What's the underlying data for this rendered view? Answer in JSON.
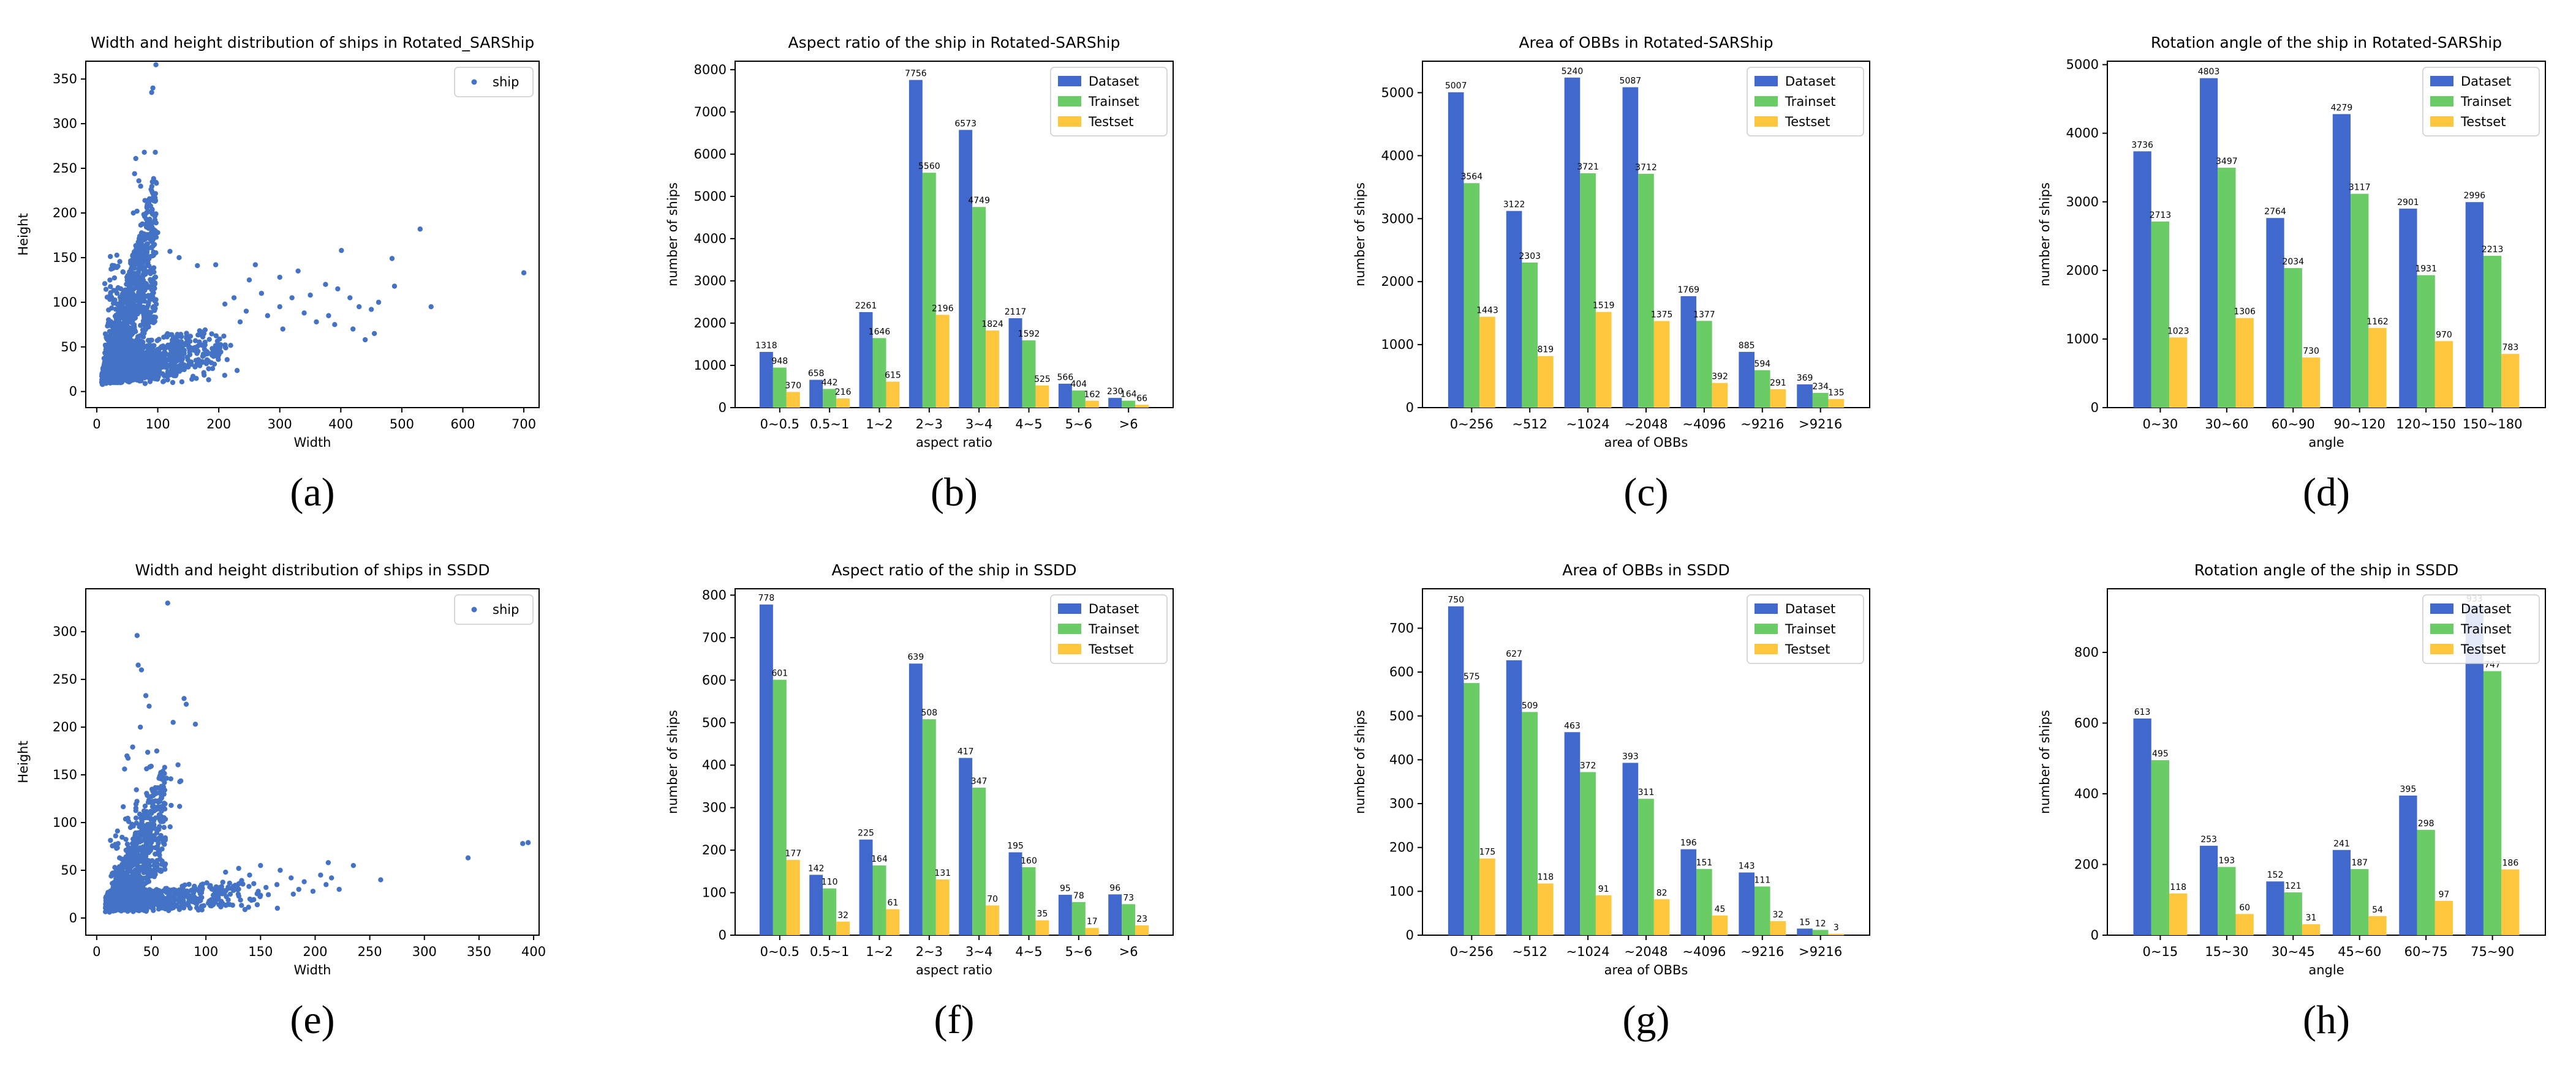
{
  "colors": {
    "dataset": "#4169cd",
    "trainset": "#6acc64",
    "testset": "#ffc73d",
    "scatter": "#4472c4"
  },
  "chart_data": [
    {
      "type": "scatter",
      "panel_label": "(a)",
      "title": "Width and height distribution of ships in Rotated_SARShip",
      "xlabel": "Width",
      "ylabel": "Height",
      "xlim": [
        -18,
        725
      ],
      "ylim": [
        -18,
        370
      ],
      "xticks": [
        0,
        100,
        200,
        300,
        400,
        500,
        600,
        700
      ],
      "yticks": [
        0,
        50,
        100,
        150,
        200,
        250,
        300,
        350
      ],
      "legend": [
        "ship"
      ],
      "legend_position": "top-right",
      "outliers": [
        [
          97,
          366
        ],
        [
          92,
          340
        ],
        [
          90,
          335
        ],
        [
          78,
          268
        ],
        [
          96,
          268
        ],
        [
          64,
          261
        ],
        [
          62,
          244
        ],
        [
          69,
          236
        ],
        [
          72,
          230
        ],
        [
          60,
          200
        ],
        [
          79,
          214
        ],
        [
          66,
          202
        ],
        [
          100,
          178
        ],
        [
          84,
          188
        ],
        [
          120,
          157
        ],
        [
          135,
          150
        ],
        [
          165,
          141
        ],
        [
          195,
          142
        ],
        [
          260,
          142
        ],
        [
          300,
          128
        ],
        [
          330,
          135
        ],
        [
          401,
          158
        ],
        [
          484,
          149
        ],
        [
          530,
          182
        ],
        [
          548,
          95
        ],
        [
          700,
          133
        ],
        [
          488,
          118
        ],
        [
          430,
          95
        ],
        [
          450,
          92
        ],
        [
          462,
          100
        ],
        [
          415,
          105
        ],
        [
          395,
          115
        ],
        [
          375,
          120
        ],
        [
          350,
          108
        ],
        [
          320,
          105
        ],
        [
          380,
          85
        ],
        [
          420,
          70
        ],
        [
          455,
          65
        ],
        [
          440,
          58
        ],
        [
          360,
          78
        ],
        [
          340,
          88
        ],
        [
          390,
          75
        ],
        [
          300,
          95
        ],
        [
          270,
          110
        ],
        [
          250,
          125
        ],
        [
          225,
          105
        ],
        [
          210,
          98
        ],
        [
          245,
          90
        ],
        [
          280,
          85
        ],
        [
          305,
          70
        ],
        [
          235,
          78
        ]
      ]
    },
    {
      "type": "bar",
      "panel_label": "(b)",
      "title": "Aspect ratio of the ship in Rotated-SARShip",
      "xlabel": "aspect ratio",
      "ylabel": "number of ships",
      "ylim": [
        0,
        8200
      ],
      "yticks": [
        0,
        1000,
        2000,
        3000,
        4000,
        5000,
        6000,
        7000,
        8000
      ],
      "legend_position": "top-right",
      "categories": [
        "0~0.5",
        "0.5~1",
        "1~2",
        "2~3",
        "3~4",
        "4~5",
        "5~6",
        ">6"
      ],
      "series": [
        {
          "name": "Dataset",
          "values": [
            1318,
            658,
            2261,
            7756,
            6573,
            2117,
            566,
            230
          ]
        },
        {
          "name": "Trainset",
          "values": [
            948,
            442,
            1646,
            5560,
            4749,
            1592,
            404,
            164
          ]
        },
        {
          "name": "Testset",
          "values": [
            370,
            216,
            615,
            2196,
            1824,
            525,
            162,
            66
          ]
        }
      ]
    },
    {
      "type": "bar",
      "panel_label": "(c)",
      "title": "Area of OBBs in Rotated-SARShip",
      "xlabel": "area of OBBs",
      "ylabel": "number of ships",
      "ylim": [
        0,
        5500
      ],
      "yticks": [
        0,
        1000,
        2000,
        3000,
        4000,
        5000
      ],
      "legend_position": "top-right",
      "categories": [
        "0~256",
        "~512",
        "~1024",
        "~2048",
        "~4096",
        "~9216",
        ">9216"
      ],
      "series": [
        {
          "name": "Dataset",
          "values": [
            5007,
            3122,
            5240,
            5087,
            1769,
            885,
            369
          ]
        },
        {
          "name": "Trainset",
          "values": [
            3564,
            2303,
            3721,
            3712,
            1377,
            594,
            234
          ]
        },
        {
          "name": "Testset",
          "values": [
            1443,
            819,
            1519,
            1375,
            392,
            291,
            135
          ]
        }
      ]
    },
    {
      "type": "bar",
      "panel_label": "(d)",
      "title": "Rotation angle of the ship in Rotated-SARShip",
      "xlabel": "angle",
      "ylabel": "number of ships",
      "ylim": [
        0,
        5050
      ],
      "yticks": [
        0,
        1000,
        2000,
        3000,
        4000,
        5000
      ],
      "legend_position": "top-right",
      "categories": [
        "0~30",
        "30~60",
        "60~90",
        "90~120",
        "120~150",
        "150~180"
      ],
      "series": [
        {
          "name": "Dataset",
          "values": [
            3736,
            4803,
            2764,
            4279,
            2901,
            2996
          ]
        },
        {
          "name": "Trainset",
          "values": [
            2713,
            3497,
            2034,
            3117,
            1931,
            2213
          ]
        },
        {
          "name": "Testset",
          "values": [
            1023,
            1306,
            730,
            1162,
            970,
            783
          ]
        }
      ]
    },
    {
      "type": "scatter",
      "panel_label": "(e)",
      "title": "Width and height distribution of ships in SSDD",
      "xlabel": "Width",
      "ylabel": "Height",
      "xlim": [
        -10,
        405
      ],
      "ylim": [
        -18,
        345
      ],
      "xticks": [
        0,
        50,
        100,
        150,
        200,
        250,
        300,
        350,
        400
      ],
      "yticks": [
        0,
        50,
        100,
        150,
        200,
        250,
        300
      ],
      "legend": [
        "ship"
      ],
      "legend_position": "top-right",
      "outliers": [
        [
          65,
          330
        ],
        [
          37,
          296
        ],
        [
          38,
          265
        ],
        [
          41,
          260
        ],
        [
          45,
          233
        ],
        [
          80,
          230
        ],
        [
          82,
          224
        ],
        [
          48,
          222
        ],
        [
          70,
          205
        ],
        [
          40,
          200
        ],
        [
          55,
          175
        ],
        [
          150,
          55
        ],
        [
          168,
          50
        ],
        [
          178,
          42
        ],
        [
          190,
          38
        ],
        [
          205,
          45
        ],
        [
          215,
          42
        ],
        [
          222,
          30
        ],
        [
          212,
          58
        ],
        [
          235,
          55
        ],
        [
          260,
          40
        ],
        [
          340,
          63
        ],
        [
          390,
          78
        ],
        [
          395,
          79
        ],
        [
          118,
          48
        ],
        [
          130,
          52
        ],
        [
          140,
          45
        ],
        [
          155,
          32
        ],
        [
          165,
          35
        ],
        [
          185,
          30
        ],
        [
          198,
          28
        ],
        [
          180,
          25
        ],
        [
          210,
          35
        ]
      ]
    },
    {
      "type": "bar",
      "panel_label": "(f)",
      "title": "Aspect ratio of the ship in SSDD",
      "xlabel": "aspect ratio",
      "ylabel": "number of ships",
      "ylim": [
        0,
        815
      ],
      "yticks": [
        0,
        100,
        200,
        300,
        400,
        500,
        600,
        700,
        800
      ],
      "legend_position": "top-right",
      "categories": [
        "0~0.5",
        "0.5~1",
        "1~2",
        "2~3",
        "3~4",
        "4~5",
        "5~6",
        ">6"
      ],
      "series": [
        {
          "name": "Dataset",
          "values": [
            778,
            142,
            225,
            639,
            417,
            195,
            95,
            96
          ]
        },
        {
          "name": "Trainset",
          "values": [
            601,
            110,
            164,
            508,
            347,
            160,
            78,
            73
          ]
        },
        {
          "name": "Testset",
          "values": [
            177,
            32,
            61,
            131,
            70,
            35,
            17,
            23
          ]
        }
      ]
    },
    {
      "type": "bar",
      "panel_label": "(g)",
      "title": "Area of OBBs in SSDD",
      "xlabel": "area of OBBs",
      "ylabel": "number of ships",
      "ylim": [
        0,
        790
      ],
      "yticks": [
        0,
        100,
        200,
        300,
        400,
        500,
        600,
        700
      ],
      "legend_position": "top-right",
      "categories": [
        "0~256",
        "~512",
        "~1024",
        "~2048",
        "~4096",
        "~9216",
        ">9216"
      ],
      "series": [
        {
          "name": "Dataset",
          "values": [
            750,
            627,
            463,
            393,
            196,
            143,
            15
          ]
        },
        {
          "name": "Trainset",
          "values": [
            575,
            509,
            372,
            311,
            151,
            111,
            12
          ]
        },
        {
          "name": "Testset",
          "values": [
            175,
            118,
            91,
            82,
            45,
            32,
            3
          ]
        }
      ]
    },
    {
      "type": "bar",
      "panel_label": "(h)",
      "title": "Rotation angle of the ship in SSDD",
      "xlabel": "angle",
      "ylabel": "number of ships",
      "ylim": [
        0,
        980
      ],
      "yticks": [
        0,
        200,
        400,
        600,
        800
      ],
      "legend_position": "top-right",
      "categories": [
        "0~15",
        "15~30",
        "30~45",
        "45~60",
        "60~75",
        "75~90"
      ],
      "series": [
        {
          "name": "Dataset",
          "values": [
            613,
            253,
            152,
            241,
            395,
            933
          ]
        },
        {
          "name": "Trainset",
          "values": [
            495,
            193,
            121,
            187,
            298,
            747
          ]
        },
        {
          "name": "Testset",
          "values": [
            118,
            60,
            31,
            54,
            97,
            186
          ]
        }
      ]
    }
  ]
}
